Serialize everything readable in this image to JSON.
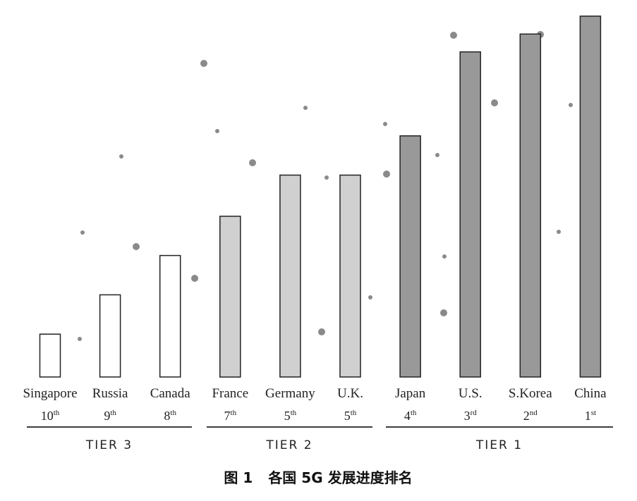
{
  "chart_data": {
    "type": "bar",
    "title": "",
    "xlabel": "",
    "ylabel": "",
    "ylim": [
      0,
      10
    ],
    "grid": false,
    "categories": [
      "Singapore",
      "Russia",
      "Canada",
      "France",
      "Germany",
      "U.K.",
      "Japan",
      "U.S.",
      "S.Korea",
      "China"
    ],
    "values": [
      1.2,
      2.3,
      3.4,
      4.5,
      5.65,
      5.65,
      6.75,
      9.1,
      9.6,
      10.1
    ],
    "ranks": [
      {
        "num": "10",
        "suffix": "th"
      },
      {
        "num": "9",
        "suffix": "th"
      },
      {
        "num": "8",
        "suffix": "th"
      },
      {
        "num": "7",
        "suffix": "th"
      },
      {
        "num": "5",
        "suffix": "th"
      },
      {
        "num": "5",
        "suffix": "th"
      },
      {
        "num": "4",
        "suffix": "th"
      },
      {
        "num": "3",
        "suffix": "rd"
      },
      {
        "num": "2",
        "suffix": "nd"
      },
      {
        "num": "1",
        "suffix": "st"
      }
    ],
    "tiers": [
      {
        "label": "TIER 3",
        "members": [
          0,
          1,
          2
        ],
        "fill": "#ffffff"
      },
      {
        "label": "TIER 2",
        "members": [
          3,
          4,
          5
        ],
        "fill": "#d0d0d0"
      },
      {
        "label": "TIER 1",
        "members": [
          6,
          7,
          8,
          9
        ],
        "fill": "#999999"
      }
    ]
  },
  "caption": {
    "figure_number": "图 1",
    "text": "各国 5G 发展进度排名"
  },
  "colors": {
    "bar_stroke": "#222222",
    "axis_line": "#222222",
    "dot": "#8a8a8a"
  }
}
